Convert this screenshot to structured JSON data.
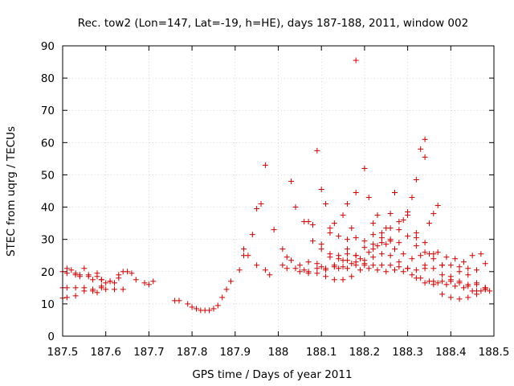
{
  "chart_data": {
    "type": "scatter",
    "title": "Rec. tow2 (Lon=147, Lat=-19, h=HE), days 187-188, 2011, window 002",
    "xlabel": "GPS time / Days of year 2011",
    "ylabel": "STEC from uqrg / TECUs",
    "xlim": [
      187.5,
      188.5
    ],
    "ylim": [
      0,
      90
    ],
    "xticks": [
      "187.5",
      "187.6",
      "187.7",
      "187.8",
      "187.9",
      "188",
      "188.1",
      "188.2",
      "188.3",
      "188.4",
      "188.5"
    ],
    "yticks": [
      "0",
      "10",
      "20",
      "30",
      "40",
      "50",
      "60",
      "70",
      "80",
      "90"
    ],
    "marker": "+",
    "color": "#cc0000",
    "series": [
      {
        "name": "STEC",
        "points": [
          [
            187.5,
            20.0
          ],
          [
            187.51,
            21.0
          ],
          [
            187.52,
            20.5
          ],
          [
            187.53,
            19.0
          ],
          [
            187.54,
            18.5
          ],
          [
            187.55,
            21.0
          ],
          [
            187.56,
            18.5
          ],
          [
            187.57,
            17.5
          ],
          [
            187.58,
            19.5
          ],
          [
            187.59,
            17.5
          ],
          [
            187.61,
            17.0
          ],
          [
            187.63,
            18.0
          ],
          [
            187.64,
            20.0
          ],
          [
            187.66,
            19.5
          ],
          [
            187.67,
            17.5
          ],
          [
            187.69,
            16.5
          ],
          [
            187.7,
            16.0
          ],
          [
            187.71,
            17.0
          ],
          [
            187.5,
            15.0
          ],
          [
            187.51,
            15.0
          ],
          [
            187.53,
            15.0
          ],
          [
            187.55,
            15.0
          ],
          [
            187.57,
            14.0
          ],
          [
            187.58,
            13.5
          ],
          [
            187.59,
            15.0
          ],
          [
            187.6,
            14.5
          ],
          [
            187.62,
            14.5
          ],
          [
            187.64,
            14.5
          ],
          [
            187.5,
            11.8
          ],
          [
            187.51,
            12.0
          ],
          [
            187.53,
            12.5
          ],
          [
            187.55,
            14.0
          ],
          [
            187.57,
            14.5
          ],
          [
            187.59,
            15.5
          ],
          [
            187.6,
            16.5
          ],
          [
            187.62,
            16.5
          ],
          [
            187.51,
            19.5
          ],
          [
            187.53,
            19.5
          ],
          [
            187.54,
            19.0
          ],
          [
            187.56,
            19.0
          ],
          [
            187.58,
            18.5
          ],
          [
            187.59,
            17.5
          ],
          [
            187.61,
            17.0
          ],
          [
            187.63,
            19.0
          ],
          [
            187.65,
            20.0
          ],
          [
            187.76,
            11.0
          ],
          [
            187.77,
            11.0
          ],
          [
            187.79,
            10.0
          ],
          [
            187.8,
            9.0
          ],
          [
            187.81,
            8.5
          ],
          [
            187.82,
            8.0
          ],
          [
            187.83,
            8.0
          ],
          [
            187.84,
            8.0
          ],
          [
            187.85,
            8.5
          ],
          [
            187.86,
            9.5
          ],
          [
            187.87,
            12.0
          ],
          [
            187.88,
            14.5
          ],
          [
            187.89,
            17.0
          ],
          [
            187.91,
            20.5
          ],
          [
            187.92,
            25.0
          ],
          [
            187.93,
            25.0
          ],
          [
            187.92,
            27.0
          ],
          [
            187.94,
            31.5
          ],
          [
            187.95,
            39.5
          ],
          [
            187.96,
            41.0
          ],
          [
            187.97,
            53.0
          ],
          [
            187.99,
            33.0
          ],
          [
            187.95,
            22.0
          ],
          [
            187.97,
            20.5
          ],
          [
            187.98,
            19.0
          ],
          [
            188.01,
            27.0
          ],
          [
            188.02,
            24.5
          ],
          [
            188.03,
            48.0
          ],
          [
            188.04,
            40.0
          ],
          [
            188.06,
            35.5
          ],
          [
            188.07,
            35.5
          ],
          [
            188.08,
            34.5
          ],
          [
            188.09,
            57.5
          ],
          [
            188.1,
            45.5
          ],
          [
            188.11,
            41.0
          ],
          [
            188.12,
            33.5
          ],
          [
            188.13,
            35.0
          ],
          [
            188.15,
            37.5
          ],
          [
            188.16,
            41.0
          ],
          [
            188.17,
            33.5
          ],
          [
            188.18,
            44.5
          ],
          [
            188.18,
            85.5
          ],
          [
            188.2,
            52.0
          ],
          [
            188.21,
            43.0
          ],
          [
            188.22,
            35.0
          ],
          [
            188.23,
            37.5
          ],
          [
            188.25,
            33.5
          ],
          [
            188.26,
            38.0
          ],
          [
            188.27,
            44.5
          ],
          [
            188.29,
            36.0
          ],
          [
            188.31,
            43.0
          ],
          [
            188.32,
            48.5
          ],
          [
            188.33,
            58.0
          ],
          [
            188.34,
            61.0
          ],
          [
            188.34,
            55.5
          ],
          [
            188.35,
            35.0
          ],
          [
            188.36,
            38.0
          ],
          [
            188.37,
            40.5
          ],
          [
            188.01,
            22.0
          ],
          [
            188.02,
            21.0
          ],
          [
            188.04,
            21.0
          ],
          [
            188.06,
            20.5
          ],
          [
            188.07,
            20.0
          ],
          [
            188.09,
            21.0
          ],
          [
            188.1,
            21.5
          ],
          [
            188.11,
            21.0
          ],
          [
            188.13,
            21.5
          ],
          [
            188.15,
            21.5
          ],
          [
            188.16,
            21.0
          ],
          [
            188.18,
            22.0
          ],
          [
            188.2,
            22.0
          ],
          [
            188.22,
            22.0
          ],
          [
            188.24,
            22.0
          ],
          [
            188.26,
            22.0
          ],
          [
            188.28,
            21.5
          ],
          [
            188.3,
            21.0
          ],
          [
            188.32,
            20.5
          ],
          [
            188.34,
            21.0
          ],
          [
            188.36,
            21.0
          ],
          [
            188.38,
            22.0
          ],
          [
            188.4,
            22.0
          ],
          [
            188.42,
            21.5
          ],
          [
            188.44,
            21.0
          ],
          [
            188.46,
            20.5
          ],
          [
            188.48,
            22.5
          ],
          [
            188.03,
            23.5
          ],
          [
            188.05,
            22.0
          ],
          [
            188.07,
            23.0
          ],
          [
            188.09,
            22.5
          ],
          [
            188.11,
            20.5
          ],
          [
            188.13,
            22.0
          ],
          [
            188.15,
            23.5
          ],
          [
            188.17,
            22.5
          ],
          [
            188.19,
            24.0
          ],
          [
            188.21,
            26.0
          ],
          [
            188.23,
            28.0
          ],
          [
            188.25,
            28.5
          ],
          [
            188.27,
            27.0
          ],
          [
            188.29,
            25.5
          ],
          [
            188.31,
            24.0
          ],
          [
            188.33,
            25.0
          ],
          [
            188.35,
            25.5
          ],
          [
            188.37,
            26.0
          ],
          [
            188.39,
            24.5
          ],
          [
            188.41,
            24.0
          ],
          [
            188.43,
            23.0
          ],
          [
            188.45,
            25.0
          ],
          [
            188.47,
            25.5
          ],
          [
            188.05,
            20.0
          ],
          [
            188.07,
            19.5
          ],
          [
            188.09,
            19.5
          ],
          [
            188.11,
            18.5
          ],
          [
            188.13,
            17.5
          ],
          [
            188.15,
            17.5
          ],
          [
            188.17,
            18.5
          ],
          [
            188.19,
            20.5
          ],
          [
            188.21,
            21.0
          ],
          [
            188.23,
            20.5
          ],
          [
            188.25,
            20.0
          ],
          [
            188.27,
            20.5
          ],
          [
            188.29,
            20.0
          ],
          [
            188.31,
            19.0
          ],
          [
            188.33,
            18.0
          ],
          [
            188.35,
            17.0
          ],
          [
            188.37,
            16.5
          ],
          [
            188.39,
            16.0
          ],
          [
            188.41,
            15.5
          ],
          [
            188.43,
            15.0
          ],
          [
            188.45,
            14.0
          ],
          [
            188.47,
            14.0
          ],
          [
            188.49,
            14.0
          ],
          [
            188.08,
            29.5
          ],
          [
            188.1,
            28.5
          ],
          [
            188.12,
            32.0
          ],
          [
            188.14,
            31.0
          ],
          [
            188.16,
            30.0
          ],
          [
            188.18,
            30.5
          ],
          [
            188.2,
            29.5
          ],
          [
            188.22,
            31.5
          ],
          [
            188.24,
            30.5
          ],
          [
            188.26,
            29.5
          ],
          [
            188.28,
            29.0
          ],
          [
            188.3,
            31.0
          ],
          [
            188.32,
            30.5
          ],
          [
            188.34,
            22.0
          ],
          [
            188.36,
            17.0
          ],
          [
            188.38,
            13.0
          ],
          [
            188.4,
            12.0
          ],
          [
            188.42,
            11.5
          ],
          [
            188.44,
            12.0
          ],
          [
            188.46,
            13.0
          ],
          [
            188.48,
            15.0
          ],
          [
            188.12,
            24.5
          ],
          [
            188.14,
            25.0
          ],
          [
            188.16,
            25.5
          ],
          [
            188.18,
            25.0
          ],
          [
            188.2,
            27.5
          ],
          [
            188.22,
            28.5
          ],
          [
            188.24,
            32.0
          ],
          [
            188.26,
            30.0
          ],
          [
            188.28,
            33.0
          ],
          [
            188.3,
            37.5
          ],
          [
            188.32,
            28.0
          ],
          [
            188.34,
            26.0
          ],
          [
            188.36,
            24.0
          ],
          [
            188.38,
            19.0
          ],
          [
            188.4,
            17.0
          ],
          [
            188.42,
            17.0
          ],
          [
            188.44,
            16.0
          ],
          [
            188.46,
            16.0
          ],
          [
            188.48,
            15.0
          ],
          [
            188.1,
            27.0
          ],
          [
            188.12,
            25.5
          ],
          [
            188.14,
            24.0
          ],
          [
            188.16,
            27.0
          ],
          [
            188.18,
            25.0
          ],
          [
            188.2,
            22.5
          ],
          [
            188.22,
            27.0
          ],
          [
            188.24,
            29.0
          ],
          [
            188.26,
            33.5
          ],
          [
            188.28,
            35.5
          ],
          [
            188.3,
            38.5
          ],
          [
            188.32,
            32.0
          ],
          [
            188.34,
            29.0
          ],
          [
            188.36,
            25.5
          ],
          [
            188.38,
            22.0
          ],
          [
            188.4,
            18.5
          ],
          [
            188.42,
            16.5
          ],
          [
            188.44,
            15.5
          ],
          [
            188.46,
            14.0
          ],
          [
            188.48,
            14.5
          ],
          [
            188.14,
            21.0
          ],
          [
            188.16,
            23.5
          ],
          [
            188.18,
            23.0
          ],
          [
            188.2,
            23.5
          ],
          [
            188.22,
            24.5
          ],
          [
            188.24,
            25.5
          ],
          [
            188.26,
            25.0
          ],
          [
            188.28,
            23.0
          ],
          [
            188.3,
            21.0
          ],
          [
            188.32,
            18.0
          ],
          [
            188.34,
            16.5
          ],
          [
            188.36,
            16.0
          ],
          [
            188.38,
            17.0
          ],
          [
            188.4,
            17.5
          ],
          [
            188.42,
            20.0
          ],
          [
            188.44,
            19.0
          ],
          [
            188.46,
            16.5
          ],
          [
            188.48,
            14.5
          ]
        ]
      }
    ]
  }
}
